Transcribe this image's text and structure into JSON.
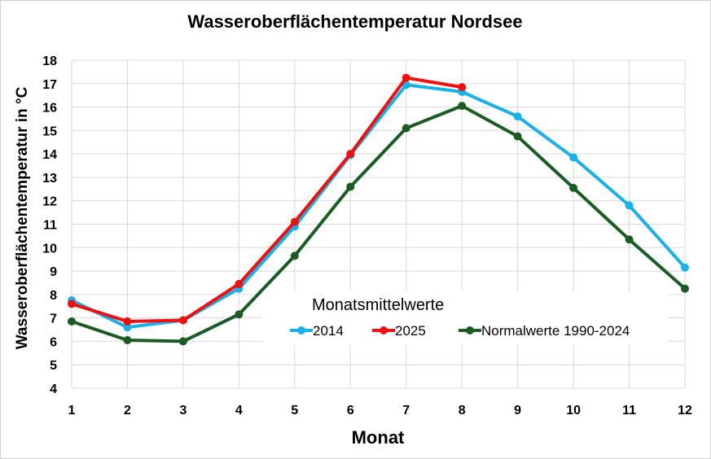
{
  "chart_data": {
    "type": "line",
    "title": "Wasseroberflächentemperatur Nordsee",
    "xlabel": "Monat",
    "ylabel": "Wasseroberflächentemperatur in °C",
    "x": [
      1,
      2,
      3,
      4,
      5,
      6,
      7,
      8,
      9,
      10,
      11,
      12
    ],
    "xlim": [
      1,
      12
    ],
    "ylim": [
      4,
      18
    ],
    "yticks": [
      4,
      5,
      6,
      7,
      8,
      9,
      10,
      11,
      12,
      13,
      14,
      15,
      16,
      17,
      18
    ],
    "grid": true,
    "legend": {
      "title": "Monatsmittelwerte",
      "placement": "lower-right inside plot"
    },
    "series": [
      {
        "name": "2014",
        "color": "#1ab0e8",
        "values": [
          7.75,
          6.6,
          6.9,
          8.25,
          10.9,
          13.95,
          16.95,
          16.65,
          15.6,
          13.85,
          11.8,
          9.15
        ]
      },
      {
        "name": "2025",
        "color": "#ee1111",
        "values": [
          7.6,
          6.85,
          6.9,
          8.45,
          11.1,
          14.0,
          17.25,
          16.85,
          null,
          null,
          null,
          null
        ]
      },
      {
        "name": "Normalwerte 1990-2024",
        "color": "#1a5c23",
        "values": [
          6.85,
          6.05,
          6.0,
          7.15,
          9.65,
          12.6,
          15.1,
          16.05,
          14.75,
          12.55,
          10.35,
          8.25
        ]
      }
    ]
  }
}
